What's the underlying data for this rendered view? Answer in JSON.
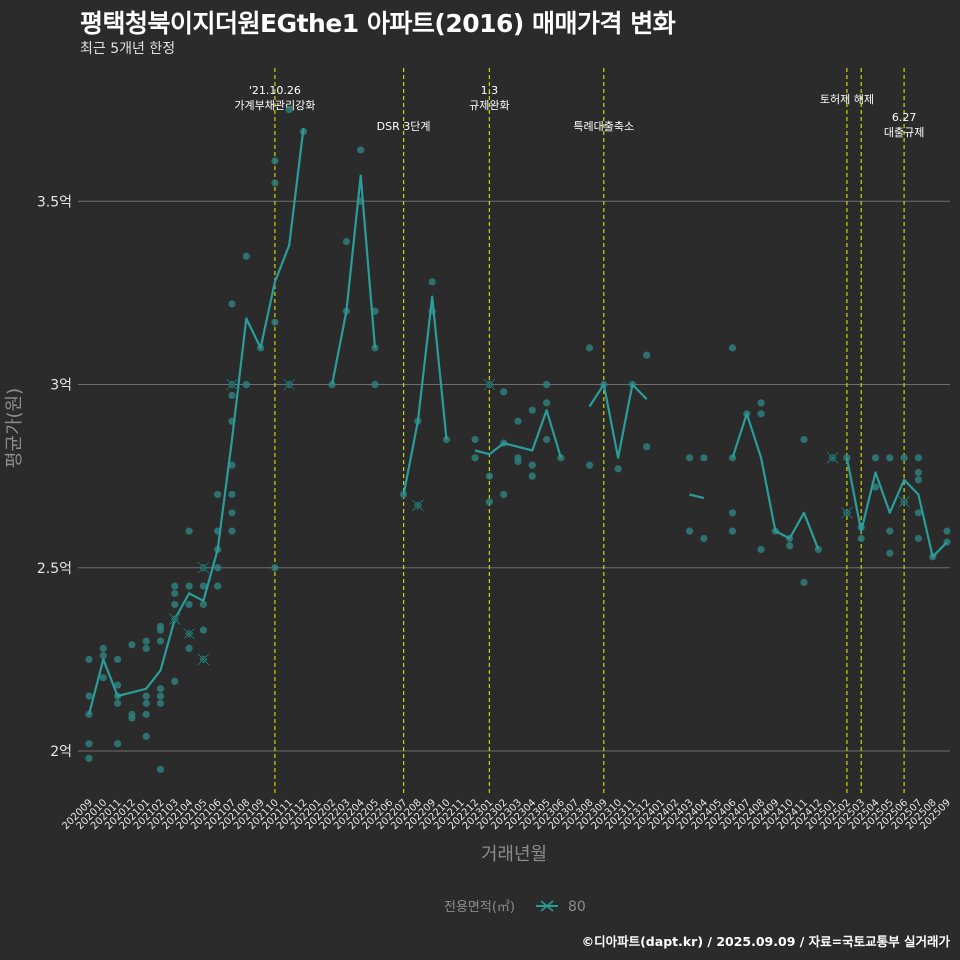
{
  "header": {
    "title": "평택청북이지더원EGthe1 아파트(2016) 매매가격 변화",
    "subtitle": "최근 5개년 한정"
  },
  "caption": "©디아파트(dapt.kr) / 2025.09.09 / 자료=국토교통부 실거래가",
  "colors": {
    "background": "#2b2b2b",
    "grid": "#6e6e6e",
    "series": "#2a9d9a",
    "point": "#2f7f7c",
    "vline": "#d4d400",
    "text": "#ffffff"
  },
  "chart_data": {
    "type": "line",
    "xlabel": "거래년월",
    "ylabel": "평균가(원)",
    "ylim": [
      1.88,
      3.88
    ],
    "y_ticks": [
      {
        "value": 2.0,
        "label": "2억"
      },
      {
        "value": 2.5,
        "label": "2.5억"
      },
      {
        "value": 3.0,
        "label": "3억"
      },
      {
        "value": 3.5,
        "label": "3.5억"
      }
    ],
    "categories": [
      "202009",
      "202010",
      "202011",
      "202012",
      "202101",
      "202102",
      "202103",
      "202104",
      "202105",
      "202106",
      "202107",
      "202108",
      "202109",
      "202110",
      "202111",
      "202112",
      "202201",
      "202202",
      "202203",
      "202204",
      "202205",
      "202206",
      "202207",
      "202208",
      "202209",
      "202210",
      "202211",
      "202212",
      "202301",
      "202302",
      "202303",
      "202304",
      "202305",
      "202306",
      "202307",
      "202308",
      "202309",
      "202310",
      "202311",
      "202312",
      "202401",
      "202402",
      "202403",
      "202404",
      "202405",
      "202406",
      "202407",
      "202408",
      "202409",
      "202410",
      "202411",
      "202412",
      "202501",
      "202502",
      "202503",
      "202504",
      "202505",
      "202506",
      "202507",
      "202508",
      "202509"
    ],
    "legend": {
      "title": "전용면적(㎡)",
      "series_label": "80"
    },
    "series": [
      {
        "name": "80",
        "mean": [
          2.1,
          2.25,
          2.15,
          2.16,
          2.17,
          2.22,
          2.36,
          2.43,
          2.41,
          2.55,
          2.85,
          3.18,
          3.1,
          3.28,
          3.38,
          3.7,
          null,
          3.0,
          3.2,
          3.57,
          3.1,
          null,
          2.7,
          2.9,
          3.24,
          2.85,
          null,
          2.82,
          2.81,
          2.84,
          2.83,
          2.82,
          2.93,
          2.8,
          null,
          2.94,
          3.0,
          2.8,
          3.0,
          2.96,
          null,
          null,
          2.7,
          2.69,
          null,
          2.8,
          2.92,
          2.8,
          2.6,
          2.58,
          2.65,
          2.55,
          null,
          2.8,
          2.6,
          2.76,
          2.65,
          2.74,
          2.7,
          2.53,
          2.57
        ]
      }
    ],
    "points": [
      [
        0,
        2.25
      ],
      [
        0,
        2.15
      ],
      [
        0,
        2.1
      ],
      [
        0,
        2.02
      ],
      [
        0,
        1.98
      ],
      [
        1,
        2.28
      ],
      [
        1,
        2.26
      ],
      [
        1,
        2.2
      ],
      [
        2,
        2.25
      ],
      [
        2,
        2.18
      ],
      [
        2,
        2.15
      ],
      [
        2,
        2.13
      ],
      [
        2,
        2.02
      ],
      [
        3,
        2.29
      ],
      [
        3,
        2.1
      ],
      [
        3,
        2.09
      ],
      [
        4,
        2.3
      ],
      [
        4,
        2.28
      ],
      [
        4,
        2.15
      ],
      [
        4,
        2.13
      ],
      [
        4,
        2.1
      ],
      [
        4,
        2.04
      ],
      [
        5,
        2.34
      ],
      [
        5,
        2.33
      ],
      [
        5,
        2.3
      ],
      [
        5,
        2.17
      ],
      [
        5,
        2.15
      ],
      [
        5,
        2.13
      ],
      [
        5,
        1.95
      ],
      [
        6,
        2.45
      ],
      [
        6,
        2.43
      ],
      [
        6,
        2.4
      ],
      [
        6,
        2.36
      ],
      [
        6,
        2.19
      ],
      [
        7,
        2.6
      ],
      [
        7,
        2.45
      ],
      [
        7,
        2.4
      ],
      [
        7,
        2.32
      ],
      [
        7,
        2.28
      ],
      [
        8,
        2.5
      ],
      [
        8,
        2.45
      ],
      [
        8,
        2.4
      ],
      [
        8,
        2.33
      ],
      [
        8,
        2.25
      ],
      [
        9,
        2.7
      ],
      [
        9,
        2.6
      ],
      [
        9,
        2.55
      ],
      [
        9,
        2.5
      ],
      [
        9,
        2.45
      ],
      [
        10,
        3.22
      ],
      [
        10,
        3.0
      ],
      [
        10,
        2.97
      ],
      [
        10,
        2.9
      ],
      [
        10,
        2.78
      ],
      [
        10,
        2.7
      ],
      [
        10,
        2.65
      ],
      [
        10,
        2.6
      ],
      [
        11,
        3.35
      ],
      [
        11,
        3.0
      ],
      [
        12,
        3.1
      ],
      [
        13,
        3.61
      ],
      [
        13,
        3.55
      ],
      [
        13,
        3.17
      ],
      [
        13,
        2.5
      ],
      [
        14,
        3.75
      ],
      [
        14,
        3.0
      ],
      [
        15,
        3.69
      ],
      [
        17,
        3.0
      ],
      [
        18,
        3.39
      ],
      [
        18,
        3.2
      ],
      [
        19,
        3.64
      ],
      [
        19,
        3.5
      ],
      [
        20,
        3.2
      ],
      [
        20,
        3.1
      ],
      [
        20,
        3.0
      ],
      [
        22,
        2.7
      ],
      [
        23,
        2.9
      ],
      [
        23,
        2.67
      ],
      [
        24,
        3.28
      ],
      [
        24,
        3.2
      ],
      [
        25,
        2.85
      ],
      [
        27,
        2.85
      ],
      [
        27,
        2.8
      ],
      [
        28,
        3.0
      ],
      [
        28,
        2.75
      ],
      [
        28,
        2.68
      ],
      [
        29,
        2.98
      ],
      [
        29,
        2.84
      ],
      [
        29,
        2.7
      ],
      [
        30,
        2.9
      ],
      [
        30,
        2.8
      ],
      [
        30,
        2.79
      ],
      [
        31,
        2.93
      ],
      [
        31,
        2.78
      ],
      [
        31,
        2.75
      ],
      [
        32,
        3.0
      ],
      [
        32,
        2.95
      ],
      [
        32,
        2.85
      ],
      [
        33,
        2.8
      ],
      [
        35,
        3.1
      ],
      [
        35,
        2.78
      ],
      [
        36,
        3.0
      ],
      [
        37,
        2.77
      ],
      [
        38,
        3.0
      ],
      [
        39,
        3.08
      ],
      [
        39,
        2.83
      ],
      [
        42,
        2.8
      ],
      [
        42,
        2.6
      ],
      [
        43,
        2.8
      ],
      [
        43,
        2.58
      ],
      [
        45,
        3.1
      ],
      [
        45,
        2.8
      ],
      [
        45,
        2.65
      ],
      [
        45,
        2.6
      ],
      [
        46,
        2.92
      ],
      [
        47,
        2.95
      ],
      [
        47,
        2.92
      ],
      [
        47,
        2.55
      ],
      [
        48,
        2.6
      ],
      [
        49,
        2.58
      ],
      [
        49,
        2.56
      ],
      [
        50,
        2.85
      ],
      [
        50,
        2.46
      ],
      [
        51,
        2.55
      ],
      [
        52,
        2.8
      ],
      [
        53,
        2.8
      ],
      [
        53,
        2.65
      ],
      [
        54,
        2.61
      ],
      [
        54,
        2.58
      ],
      [
        55,
        2.8
      ],
      [
        55,
        2.72
      ],
      [
        56,
        2.8
      ],
      [
        56,
        2.6
      ],
      [
        56,
        2.54
      ],
      [
        57,
        2.8
      ],
      [
        57,
        2.68
      ],
      [
        58,
        2.8
      ],
      [
        58,
        2.76
      ],
      [
        58,
        2.74
      ],
      [
        58,
        2.65
      ],
      [
        58,
        2.58
      ],
      [
        59,
        2.53
      ],
      [
        60,
        2.6
      ],
      [
        60,
        2.57
      ]
    ],
    "x_marks": [
      [
        6,
        2.36
      ],
      [
        7,
        2.32
      ],
      [
        8,
        2.5
      ],
      [
        8,
        2.25
      ],
      [
        10,
        3.0
      ],
      [
        14,
        3.0
      ],
      [
        23,
        2.67
      ],
      [
        28,
        3.0
      ],
      [
        52,
        2.8
      ],
      [
        53,
        2.65
      ],
      [
        57,
        2.68
      ]
    ],
    "events": [
      {
        "index": 13.0,
        "label": "'21.10.26\n가계부채관리강화",
        "row": 0
      },
      {
        "index": 22.0,
        "label": "DSR 3단계",
        "row": 1
      },
      {
        "index": 28.0,
        "label": "1.3\n규제완화",
        "row": 0
      },
      {
        "index": 36.0,
        "label": "특례대출축소",
        "row": 1
      },
      {
        "index": 53.0,
        "label": "토허제 해제",
        "row": 0
      },
      {
        "index": 54.0,
        "label": "",
        "row": 0
      },
      {
        "index": 57.0,
        "label": "6.27\n대출규제",
        "row": 1
      }
    ]
  }
}
